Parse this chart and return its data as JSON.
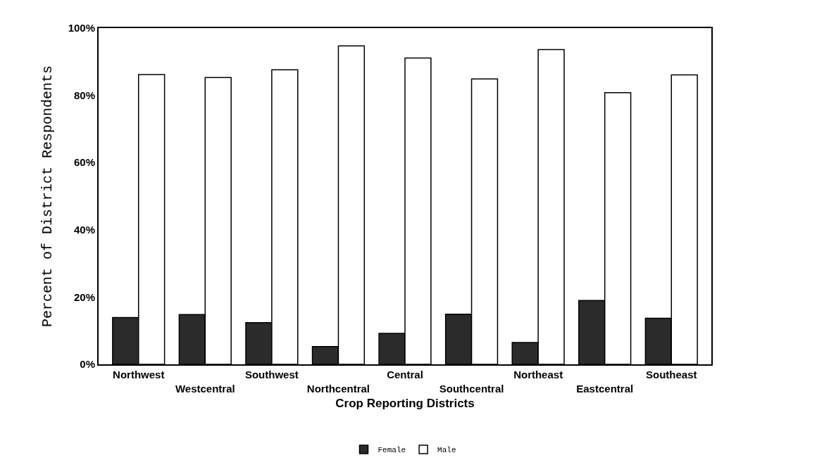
{
  "chart_data": {
    "type": "bar",
    "xlabel": "Crop Reporting Districts",
    "ylabel": "Percent of District Respondents",
    "categories": [
      "Northwest",
      "Westcentral",
      "Southwest",
      "Northcentral",
      "Central",
      "Southcentral",
      "Northeast",
      "Eastcentral",
      "Southeast"
    ],
    "series": [
      {
        "name": "Female",
        "color": "#2b2b2b",
        "values": [
          13.9,
          14.8,
          12.4,
          5.3,
          9.2,
          14.9,
          6.5,
          19.0,
          13.7
        ]
      },
      {
        "name": "Male",
        "color": "#ffffff",
        "values": [
          86.2,
          85.3,
          87.6,
          94.7,
          91.1,
          84.9,
          93.6,
          80.8,
          86.1
        ]
      }
    ],
    "ylim": [
      0,
      100
    ],
    "yticks": [
      {
        "value": 0,
        "label": "0%"
      },
      {
        "value": 20,
        "label": "20%"
      },
      {
        "value": 40,
        "label": "40%"
      },
      {
        "value": 60,
        "label": "60%"
      },
      {
        "value": 80,
        "label": "80%"
      },
      {
        "value": 100,
        "label": "100%"
      }
    ],
    "grid": false,
    "legend": "bottom"
  }
}
